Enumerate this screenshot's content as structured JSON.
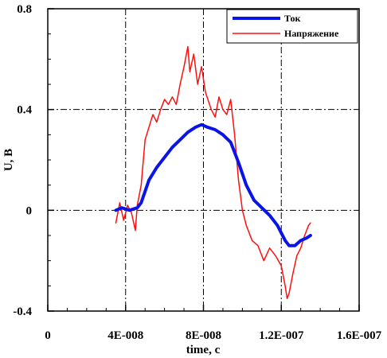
{
  "chart_data": {
    "type": "line",
    "title": "",
    "xlabel": "time, c",
    "ylabel": "U, B",
    "xlim": [
      0,
      1.6e-07
    ],
    "ylim": [
      -0.4,
      0.8
    ],
    "x_ticks": [
      0,
      4e-08,
      8e-08,
      1.2e-07,
      1.6e-07
    ],
    "x_tick_labels": [
      "0",
      "4E-008",
      "8E-008",
      "1.2E-007",
      "1.6E-007"
    ],
    "y_ticks": [
      -0.4,
      0,
      0.4,
      0.8
    ],
    "y_tick_labels": [
      "-0.4",
      "0",
      "0.4",
      "0.8"
    ],
    "grid": true,
    "legend_position": "top-right",
    "series": [
      {
        "name": "Ток",
        "color": "#0a14e6",
        "line_width": "thick",
        "x": [
          3.5e-08,
          3.8e-08,
          4.2e-08,
          4.6e-08,
          4.8e-08,
          5.2e-08,
          5.6e-08,
          6e-08,
          6.4e-08,
          6.8e-08,
          7.2e-08,
          7.6e-08,
          7.9e-08,
          8.2e-08,
          8.6e-08,
          9e-08,
          9.4e-08,
          9.8e-08,
          1.02e-07,
          1.06e-07,
          1.1e-07,
          1.14e-07,
          1.18e-07,
          1.22e-07,
          1.24e-07,
          1.27e-07,
          1.3e-07,
          1.33e-07,
          1.35e-07
        ],
        "y": [
          0.0,
          0.01,
          0.0,
          0.01,
          0.03,
          0.12,
          0.17,
          0.21,
          0.25,
          0.28,
          0.31,
          0.33,
          0.34,
          0.33,
          0.32,
          0.3,
          0.27,
          0.19,
          0.1,
          0.04,
          0.01,
          -0.02,
          -0.06,
          -0.12,
          -0.14,
          -0.14,
          -0.12,
          -0.11,
          -0.1
        ]
      },
      {
        "name": "Напряжение",
        "color": "#ff1010",
        "line_width": "thin",
        "x": [
          3.5e-08,
          3.7e-08,
          3.9e-08,
          4.1e-08,
          4.3e-08,
          4.5e-08,
          4.6e-08,
          4.8e-08,
          5e-08,
          5.2e-08,
          5.4e-08,
          5.6e-08,
          5.8e-08,
          6e-08,
          6.2e-08,
          6.4e-08,
          6.6e-08,
          6.8e-08,
          7e-08,
          7.2e-08,
          7.3e-08,
          7.5e-08,
          7.7e-08,
          7.9e-08,
          8.1e-08,
          8.4e-08,
          8.6e-08,
          8.8e-08,
          9e-08,
          9.2e-08,
          9.4e-08,
          9.6e-08,
          9.8e-08,
          1e-07,
          1.02e-07,
          1.05e-07,
          1.08e-07,
          1.11e-07,
          1.14e-07,
          1.17e-07,
          1.2e-07,
          1.22e-07,
          1.23e-07,
          1.24e-07,
          1.26e-07,
          1.28e-07,
          1.3e-07,
          1.32e-07,
          1.34e-07,
          1.35e-07
        ],
        "y": [
          -0.05,
          0.03,
          -0.04,
          0.02,
          -0.01,
          -0.08,
          0.02,
          0.1,
          0.28,
          0.33,
          0.38,
          0.35,
          0.4,
          0.44,
          0.42,
          0.45,
          0.42,
          0.5,
          0.57,
          0.65,
          0.55,
          0.62,
          0.5,
          0.57,
          0.47,
          0.4,
          0.37,
          0.45,
          0.4,
          0.38,
          0.44,
          0.3,
          0.12,
          0.0,
          -0.06,
          -0.12,
          -0.14,
          -0.2,
          -0.15,
          -0.18,
          -0.22,
          -0.3,
          -0.35,
          -0.33,
          -0.25,
          -0.18,
          -0.15,
          -0.1,
          -0.06,
          -0.05
        ]
      }
    ]
  }
}
